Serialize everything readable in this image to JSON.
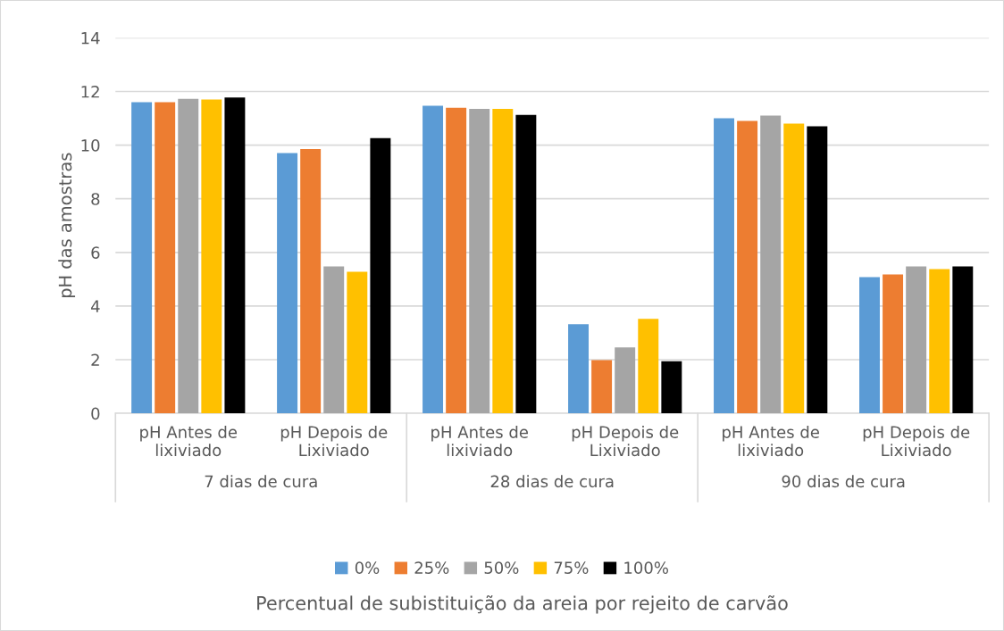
{
  "chart_data": {
    "type": "bar",
    "categories": [
      "pH Antes de\nlixiviado",
      "pH Depois de\nLixiviado",
      "pH Antes de\nlixiviado",
      "pH Depois de\nLixiviado",
      "pH Antes de\nlixiviado",
      "pH Depois de\nLixiviado"
    ],
    "series": [
      {
        "name": "0%",
        "color": "#5b9bd5",
        "values": [
          11.6,
          9.7,
          11.47,
          3.32,
          11.0,
          5.08
        ]
      },
      {
        "name": "25%",
        "color": "#ed7d31",
        "values": [
          11.6,
          9.85,
          11.39,
          1.98,
          10.9,
          5.18
        ]
      },
      {
        "name": "50%",
        "color": "#a5a5a5",
        "values": [
          11.73,
          5.48,
          11.35,
          2.46,
          11.1,
          5.48
        ]
      },
      {
        "name": "75%",
        "color": "#ffc000",
        "values": [
          11.7,
          5.28,
          11.35,
          3.52,
          10.8,
          5.38
        ]
      },
      {
        "name": "100%",
        "color": "#000000",
        "values": [
          11.78,
          10.26,
          11.13,
          1.94,
          10.7,
          5.48
        ]
      }
    ],
    "ylabel": "pH das amostras",
    "annotations": [
      "7 dias de cura",
      "28 dias de cura",
      "90 dias de cura",
      "Percentual de subistituição da areia por rejeito de carvão"
    ],
    "ylim": [
      0,
      14
    ],
    "yticks": [
      0,
      2,
      4,
      6,
      8,
      10,
      12,
      14
    ],
    "grid": "y",
    "legend": "bottom"
  }
}
